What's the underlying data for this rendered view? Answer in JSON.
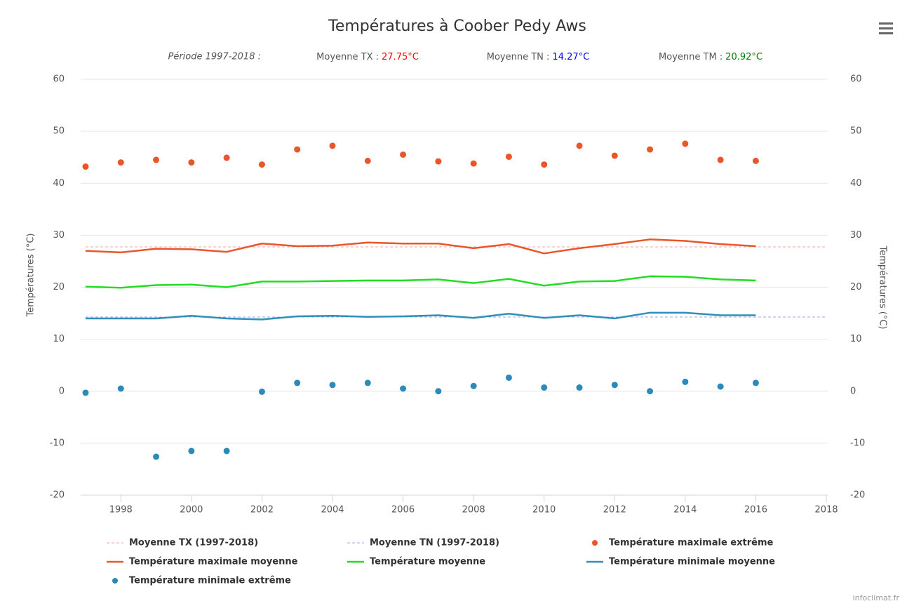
{
  "chart_data": {
    "type": "line",
    "title": "Températures à Coober Pedy Aws",
    "subtitle": {
      "period": "Période 1997-2018 :",
      "stats": [
        {
          "label": "Moyenne TX :",
          "value": "27.75°C",
          "color": "#ff0000"
        },
        {
          "label": "Moyenne TN :",
          "value": "14.27°C",
          "color": "#0000ff"
        },
        {
          "label": "Moyenne TM :",
          "value": "20.92°C",
          "color": "#008000"
        }
      ]
    },
    "y_label": "Températures (°C)",
    "y2_label": "Températures (°C)",
    "credits": "infoclimat.fr",
    "x": [
      1997,
      1998,
      1999,
      2000,
      2001,
      2002,
      2003,
      2004,
      2005,
      2006,
      2007,
      2008,
      2009,
      2010,
      2011,
      2012,
      2013,
      2014,
      2015,
      2016
    ],
    "xlim": [
      1997,
      2018
    ],
    "xticks": [
      1998,
      2000,
      2002,
      2004,
      2006,
      2008,
      2010,
      2012,
      2014,
      2016,
      2018
    ],
    "ylim": [
      -20,
      60
    ],
    "yticks": [
      -20,
      -10,
      0,
      10,
      20,
      30,
      40,
      50,
      60
    ],
    "y2lim": [
      -20,
      60
    ],
    "y2ticks": [
      -20,
      -10,
      0,
      10,
      20,
      30,
      40,
      50,
      60
    ],
    "grid": true,
    "series": [
      {
        "name": "Moyenne TX (1997-2018)",
        "kind": "dash",
        "color": "#f4a3a3",
        "x": [
          1997,
          2018
        ],
        "values": [
          27.75,
          27.75
        ]
      },
      {
        "name": "Moyenne TN (1997-2018)",
        "kind": "dash",
        "color": "#a3a3f4",
        "x": [
          1997,
          2018
        ],
        "values": [
          14.27,
          14.27
        ]
      },
      {
        "name": "Température maximale extrême",
        "kind": "scatter",
        "color": "#e8562a",
        "values": [
          43.2,
          44,
          44.5,
          44,
          44.9,
          43.6,
          46.5,
          47.2,
          44.3,
          45.5,
          44.2,
          43.8,
          45.1,
          43.6,
          47.2,
          45.3,
          46.5,
          47.6,
          44.5,
          44.3
        ]
      },
      {
        "name": "Température maximale moyenne",
        "kind": "line",
        "color": "#e8562a",
        "values": [
          27,
          26.7,
          27.4,
          27.3,
          26.8,
          28.4,
          27.9,
          28,
          28.6,
          28.4,
          28.4,
          27.5,
          28.3,
          26.5,
          27.5,
          28.3,
          29.2,
          28.9,
          28.3,
          27.9
        ]
      },
      {
        "name": "Température moyenne",
        "kind": "line",
        "color": "#22dd22",
        "values": [
          20.1,
          19.9,
          20.4,
          20.5,
          20,
          21.1,
          21.1,
          21.2,
          21.3,
          21.3,
          21.5,
          20.8,
          21.6,
          20.3,
          21.1,
          21.2,
          22.1,
          22,
          21.5,
          21.3
        ]
      },
      {
        "name": "Température minimale moyenne",
        "kind": "line",
        "color": "#2f8fb8",
        "values": [
          14,
          14,
          14,
          14.5,
          14,
          13.8,
          14.4,
          14.5,
          14.3,
          14.4,
          14.6,
          14.1,
          14.9,
          14.1,
          14.6,
          14,
          15.1,
          15.1,
          14.6,
          14.6
        ]
      },
      {
        "name": "Température minimale extrême",
        "kind": "scatter",
        "color": "#2b8bb8",
        "values": [
          -0.3,
          0.5,
          -12.6,
          -11.5,
          -11.5,
          -0.1,
          1.6,
          1.2,
          1.6,
          0.5,
          0,
          1,
          2.6,
          0.7,
          0.7,
          1.2,
          0,
          1.8,
          0.9,
          1.6
        ]
      }
    ]
  }
}
